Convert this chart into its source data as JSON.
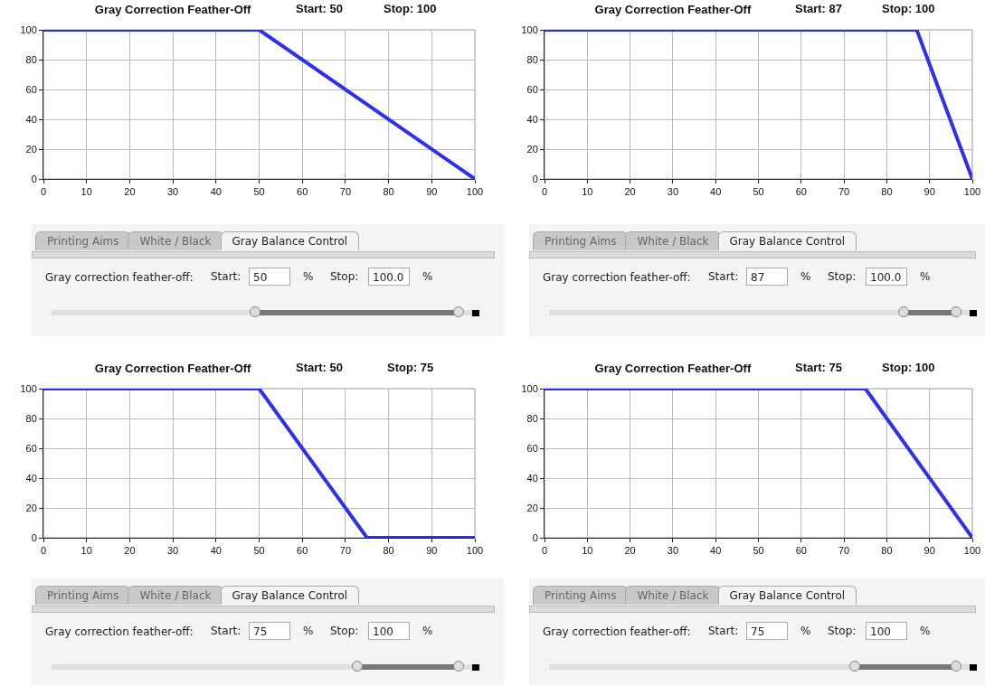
{
  "chart_data": [
    {
      "type": "line",
      "title": "Gray Correction Feather-Off",
      "annotations": [
        "Start: 50",
        "Stop: 100"
      ],
      "x": [
        0,
        50,
        100
      ],
      "values": [
        100,
        100,
        0
      ],
      "color": "#2f2ff0",
      "xlim": [
        0,
        100
      ],
      "ylim": [
        0,
        100
      ],
      "xticks": [
        0,
        10,
        20,
        30,
        40,
        50,
        60,
        70,
        80,
        90,
        100
      ],
      "yticks": [
        0,
        20,
        40,
        60,
        80,
        100
      ],
      "grid": true,
      "marker": "none",
      "line_style": "solid"
    },
    {
      "type": "line",
      "title": "Gray Correction Feather-Off",
      "annotations": [
        "Start: 87",
        "Stop: 100"
      ],
      "x": [
        0,
        87,
        100
      ],
      "values": [
        100,
        100,
        0
      ],
      "color": "#2f2ff0",
      "xlim": [
        0,
        100
      ],
      "ylim": [
        0,
        100
      ],
      "xticks": [
        0,
        10,
        20,
        30,
        40,
        50,
        60,
        70,
        80,
        90,
        100
      ],
      "yticks": [
        0,
        20,
        40,
        60,
        80,
        100
      ],
      "grid": true,
      "marker": "none",
      "line_style": "solid"
    },
    {
      "type": "other",
      "annotations": [
        "Printing Aims",
        "White / Black",
        "Gray Balance Control",
        "Gray correction feather-off:",
        "Start:",
        "50",
        "%",
        "Stop:",
        "100.0",
        "%"
      ]
    },
    {
      "type": "other",
      "annotations": [
        "Printing Aims",
        "White / Black",
        "Gray Balance Control",
        "Gray correction feather-off:",
        "Start:",
        "87",
        "%",
        "Stop:",
        "100.0",
        "%"
      ]
    },
    {
      "type": "line",
      "title": "Gray Correction Feather-Off",
      "annotations": [
        "Start: 50",
        "Stop: 75"
      ],
      "x": [
        0,
        50,
        75,
        100
      ],
      "values": [
        100,
        100,
        0,
        0
      ],
      "color": "#2f2ff0",
      "xlim": [
        0,
        100
      ],
      "ylim": [
        0,
        100
      ],
      "xticks": [
        0,
        10,
        20,
        30,
        40,
        50,
        60,
        70,
        80,
        90,
        100
      ],
      "yticks": [
        0,
        20,
        40,
        60,
        80,
        100
      ],
      "grid": true,
      "marker": "none",
      "line_style": "solid"
    },
    {
      "type": "line",
      "title": "Gray Correction Feather-Off",
      "annotations": [
        "Start: 75",
        "Stop: 100"
      ],
      "x": [
        0,
        75,
        100
      ],
      "values": [
        100,
        100,
        0
      ],
      "color": "#2f2ff0",
      "xlim": [
        0,
        100
      ],
      "ylim": [
        0,
        100
      ],
      "xticks": [
        0,
        10,
        20,
        30,
        40,
        50,
        60,
        70,
        80,
        90,
        100
      ],
      "yticks": [
        0,
        20,
        40,
        60,
        80,
        100
      ],
      "grid": true,
      "marker": "none",
      "line_style": "solid"
    },
    {
      "type": "other",
      "annotations": [
        "Printing Aims",
        "White / Black",
        "Gray Balance Control",
        "Gray correction feather-off:",
        "Start:",
        "75",
        "%",
        "Stop:",
        "100",
        "%"
      ]
    },
    {
      "type": "other",
      "annotations": [
        "Printing Aims",
        "White / Black",
        "Gray Balance Control",
        "Gray correction feather-off:",
        "Start:",
        "75",
        "%",
        "Stop:",
        "100",
        "%"
      ]
    }
  ]
}
